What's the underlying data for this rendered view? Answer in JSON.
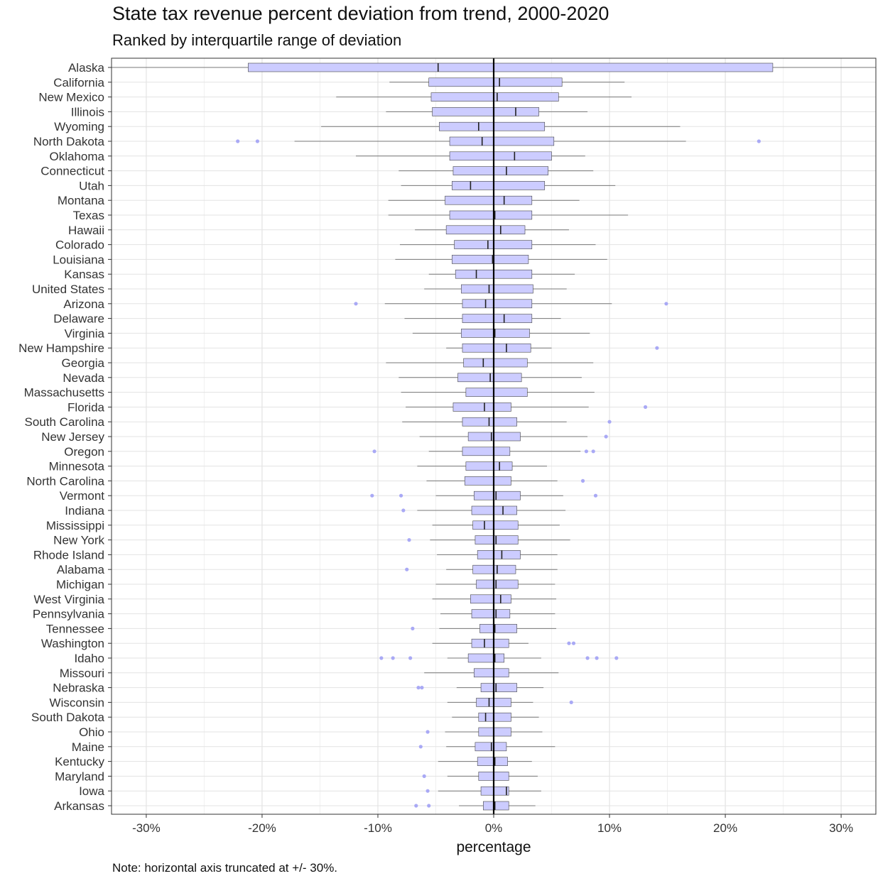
{
  "title": "State tax revenue percent deviation from trend, 2000-2020",
  "subtitle": "Ranked by interquartile range of deviation",
  "note": "Note: horizontal axis truncated at +/- 30%.",
  "colors": {
    "box_fill": "#ccccff",
    "box_stroke": "#444444",
    "whisker": "#777777",
    "outlier": "#a9a9f5",
    "zero_line": "#000000",
    "grid_major": "#e3e3e3",
    "grid_minor": "#f0f0f0",
    "panel_border": "#333333"
  },
  "chart_data": {
    "type": "boxplot",
    "orientation": "horizontal",
    "xlabel": "percentage",
    "ylabel": "",
    "xlim": [
      -33,
      33
    ],
    "x_ticks": [
      -30,
      -20,
      -10,
      0,
      10,
      20,
      30
    ],
    "x_tick_labels": [
      "-30%",
      "-20%",
      "-10%",
      "0%",
      "10%",
      "20%",
      "30%"
    ],
    "zero_reference_line": 0,
    "grid": true,
    "states": [
      {
        "name": "Alaska",
        "lo": -33,
        "q1": -21.2,
        "med": -4.8,
        "q3": 24.1,
        "hi": 33,
        "outliers": []
      },
      {
        "name": "California",
        "lo": -9.0,
        "q1": -5.6,
        "med": 0.5,
        "q3": 5.9,
        "hi": 11.3,
        "outliers": []
      },
      {
        "name": "New Mexico",
        "lo": -13.6,
        "q1": -5.4,
        "med": 0.3,
        "q3": 5.6,
        "hi": 11.9,
        "outliers": []
      },
      {
        "name": "Illinois",
        "lo": -9.3,
        "q1": -5.3,
        "med": 1.9,
        "q3": 3.9,
        "hi": 8.1,
        "outliers": []
      },
      {
        "name": "Wyoming",
        "lo": -14.9,
        "q1": -4.7,
        "med": -1.3,
        "q3": 4.4,
        "hi": 16.1,
        "outliers": []
      },
      {
        "name": "North Dakota",
        "lo": -17.2,
        "q1": -3.8,
        "med": -1.0,
        "q3": 5.2,
        "hi": 16.6,
        "outliers": [
          -22.1,
          -20.4,
          22.9
        ]
      },
      {
        "name": "Oklahoma",
        "lo": -11.9,
        "q1": -3.8,
        "med": 1.8,
        "q3": 5.0,
        "hi": 7.9,
        "outliers": []
      },
      {
        "name": "Connecticut",
        "lo": -8.2,
        "q1": -3.5,
        "med": 1.1,
        "q3": 4.7,
        "hi": 8.6,
        "outliers": []
      },
      {
        "name": "Utah",
        "lo": -8.0,
        "q1": -3.6,
        "med": -2.0,
        "q3": 4.4,
        "hi": 10.5,
        "outliers": []
      },
      {
        "name": "Montana",
        "lo": -9.1,
        "q1": -4.2,
        "med": 0.9,
        "q3": 3.3,
        "hi": 7.4,
        "outliers": []
      },
      {
        "name": "Texas",
        "lo": -9.1,
        "q1": -3.8,
        "med": 0.1,
        "q3": 3.3,
        "hi": 11.6,
        "outliers": []
      },
      {
        "name": "Hawaii",
        "lo": -6.8,
        "q1": -4.1,
        "med": 0.6,
        "q3": 2.7,
        "hi": 6.5,
        "outliers": []
      },
      {
        "name": "Colorado",
        "lo": -8.1,
        "q1": -3.4,
        "med": -0.5,
        "q3": 3.3,
        "hi": 8.8,
        "outliers": []
      },
      {
        "name": "Louisiana",
        "lo": -8.5,
        "q1": -3.6,
        "med": -0.1,
        "q3": 3.0,
        "hi": 9.8,
        "outliers": []
      },
      {
        "name": "Kansas",
        "lo": -5.6,
        "q1": -3.3,
        "med": -1.5,
        "q3": 3.3,
        "hi": 7.0,
        "outliers": []
      },
      {
        "name": "United States",
        "lo": -6.0,
        "q1": -2.8,
        "med": -0.4,
        "q3": 3.4,
        "hi": 6.3,
        "outliers": []
      },
      {
        "name": "Arizona",
        "lo": -9.4,
        "q1": -2.7,
        "med": -0.7,
        "q3": 3.3,
        "hi": 10.2,
        "outliers": [
          -11.9,
          14.9
        ]
      },
      {
        "name": "Delaware",
        "lo": -7.7,
        "q1": -2.7,
        "med": 0.9,
        "q3": 3.3,
        "hi": 5.8,
        "outliers": []
      },
      {
        "name": "Virginia",
        "lo": -7.0,
        "q1": -2.8,
        "med": 0.1,
        "q3": 3.1,
        "hi": 8.3,
        "outliers": []
      },
      {
        "name": "New Hampshire",
        "lo": -4.1,
        "q1": -2.7,
        "med": 1.1,
        "q3": 3.2,
        "hi": 5.0,
        "outliers": [
          14.1
        ]
      },
      {
        "name": "Georgia",
        "lo": -9.3,
        "q1": -2.6,
        "med": -0.9,
        "q3": 2.9,
        "hi": 8.6,
        "outliers": []
      },
      {
        "name": "Nevada",
        "lo": -8.2,
        "q1": -3.1,
        "med": -0.3,
        "q3": 2.4,
        "hi": 7.6,
        "outliers": []
      },
      {
        "name": "Massachusetts",
        "lo": -8.0,
        "q1": -2.4,
        "med": 0.0,
        "q3": 2.9,
        "hi": 8.7,
        "outliers": []
      },
      {
        "name": "Florida",
        "lo": -7.6,
        "q1": -3.5,
        "med": -0.8,
        "q3": 1.5,
        "hi": 8.2,
        "outliers": [
          13.1
        ]
      },
      {
        "name": "South Carolina",
        "lo": -7.9,
        "q1": -2.7,
        "med": -0.4,
        "q3": 2.0,
        "hi": 6.3,
        "outliers": [
          10.0
        ]
      },
      {
        "name": "New Jersey",
        "lo": -6.4,
        "q1": -2.2,
        "med": -0.2,
        "q3": 2.3,
        "hi": 8.1,
        "outliers": [
          9.7
        ]
      },
      {
        "name": "Oregon",
        "lo": -5.6,
        "q1": -2.7,
        "med": 0.0,
        "q3": 1.4,
        "hi": 7.5,
        "outliers": [
          -10.3,
          8.0,
          8.6
        ]
      },
      {
        "name": "Minnesota",
        "lo": -6.6,
        "q1": -2.4,
        "med": 0.5,
        "q3": 1.6,
        "hi": 4.6,
        "outliers": []
      },
      {
        "name": "North Carolina",
        "lo": -5.8,
        "q1": -2.5,
        "med": 0.0,
        "q3": 1.5,
        "hi": 5.5,
        "outliers": [
          7.7
        ]
      },
      {
        "name": "Vermont",
        "lo": -5.0,
        "q1": -1.7,
        "med": 0.2,
        "q3": 2.3,
        "hi": 6.0,
        "outliers": [
          -10.5,
          -8.0,
          8.8
        ]
      },
      {
        "name": "Indiana",
        "lo": -6.6,
        "q1": -1.9,
        "med": 0.8,
        "q3": 2.0,
        "hi": 6.2,
        "outliers": [
          -7.8
        ]
      },
      {
        "name": "Mississippi",
        "lo": -5.3,
        "q1": -1.8,
        "med": -0.8,
        "q3": 2.1,
        "hi": 5.7,
        "outliers": []
      },
      {
        "name": "New York",
        "lo": -5.5,
        "q1": -1.6,
        "med": 0.2,
        "q3": 2.1,
        "hi": 6.6,
        "outliers": [
          -7.3
        ]
      },
      {
        "name": "Rhode Island",
        "lo": -4.9,
        "q1": -1.4,
        "med": 0.7,
        "q3": 2.3,
        "hi": 5.5,
        "outliers": []
      },
      {
        "name": "Alabama",
        "lo": -4.1,
        "q1": -1.8,
        "med": 0.3,
        "q3": 1.9,
        "hi": 5.5,
        "outliers": [
          -7.5
        ]
      },
      {
        "name": "Michigan",
        "lo": -5.0,
        "q1": -1.5,
        "med": 0.2,
        "q3": 2.1,
        "hi": 5.3,
        "outliers": []
      },
      {
        "name": "West Virginia",
        "lo": -5.3,
        "q1": -2.0,
        "med": 0.6,
        "q3": 1.5,
        "hi": 5.4,
        "outliers": []
      },
      {
        "name": "Pennsylvania",
        "lo": -4.6,
        "q1": -1.9,
        "med": 0.2,
        "q3": 1.4,
        "hi": 5.3,
        "outliers": []
      },
      {
        "name": "Tennessee",
        "lo": -4.7,
        "q1": -1.2,
        "med": 0.1,
        "q3": 2.0,
        "hi": 5.4,
        "outliers": [
          -7.0
        ]
      },
      {
        "name": "Washington",
        "lo": -5.3,
        "q1": -1.9,
        "med": -0.8,
        "q3": 1.3,
        "hi": 3.0,
        "outliers": [
          6.5,
          6.9
        ]
      },
      {
        "name": "Idaho",
        "lo": -4.0,
        "q1": -2.2,
        "med": 0.1,
        "q3": 0.9,
        "hi": 4.1,
        "outliers": [
          -9.7,
          -8.7,
          -7.2,
          8.1,
          8.9,
          10.6
        ]
      },
      {
        "name": "Missouri",
        "lo": -6.0,
        "q1": -1.7,
        "med": 0.0,
        "q3": 1.3,
        "hi": 5.6,
        "outliers": []
      },
      {
        "name": "Nebraska",
        "lo": -3.2,
        "q1": -1.1,
        "med": 0.2,
        "q3": 2.0,
        "hi": 4.3,
        "outliers": [
          -6.5,
          -6.2
        ]
      },
      {
        "name": "Wisconsin",
        "lo": -4.0,
        "q1": -1.5,
        "med": -0.4,
        "q3": 1.5,
        "hi": 3.4,
        "outliers": [
          6.7
        ]
      },
      {
        "name": "South Dakota",
        "lo": -3.6,
        "q1": -1.3,
        "med": -0.7,
        "q3": 1.5,
        "hi": 3.9,
        "outliers": []
      },
      {
        "name": "Ohio",
        "lo": -4.2,
        "q1": -1.3,
        "med": 0.0,
        "q3": 1.5,
        "hi": 4.2,
        "outliers": [
          -5.7
        ]
      },
      {
        "name": "Maine",
        "lo": -4.1,
        "q1": -1.6,
        "med": -0.2,
        "q3": 1.1,
        "hi": 5.3,
        "outliers": [
          -6.3
        ]
      },
      {
        "name": "Kentucky",
        "lo": -4.8,
        "q1": -1.4,
        "med": 0.1,
        "q3": 1.2,
        "hi": 3.3,
        "outliers": []
      },
      {
        "name": "Maryland",
        "lo": -4.0,
        "q1": -1.3,
        "med": 0.0,
        "q3": 1.3,
        "hi": 3.8,
        "outliers": [
          -6.0
        ]
      },
      {
        "name": "Iowa",
        "lo": -4.8,
        "q1": -1.1,
        "med": 1.1,
        "q3": 1.3,
        "hi": 4.1,
        "outliers": [
          -5.7
        ]
      },
      {
        "name": "Arkansas",
        "lo": -3.0,
        "q1": -0.9,
        "med": 0.1,
        "q3": 1.3,
        "hi": 3.6,
        "outliers": [
          -6.7,
          -5.6
        ]
      }
    ]
  }
}
